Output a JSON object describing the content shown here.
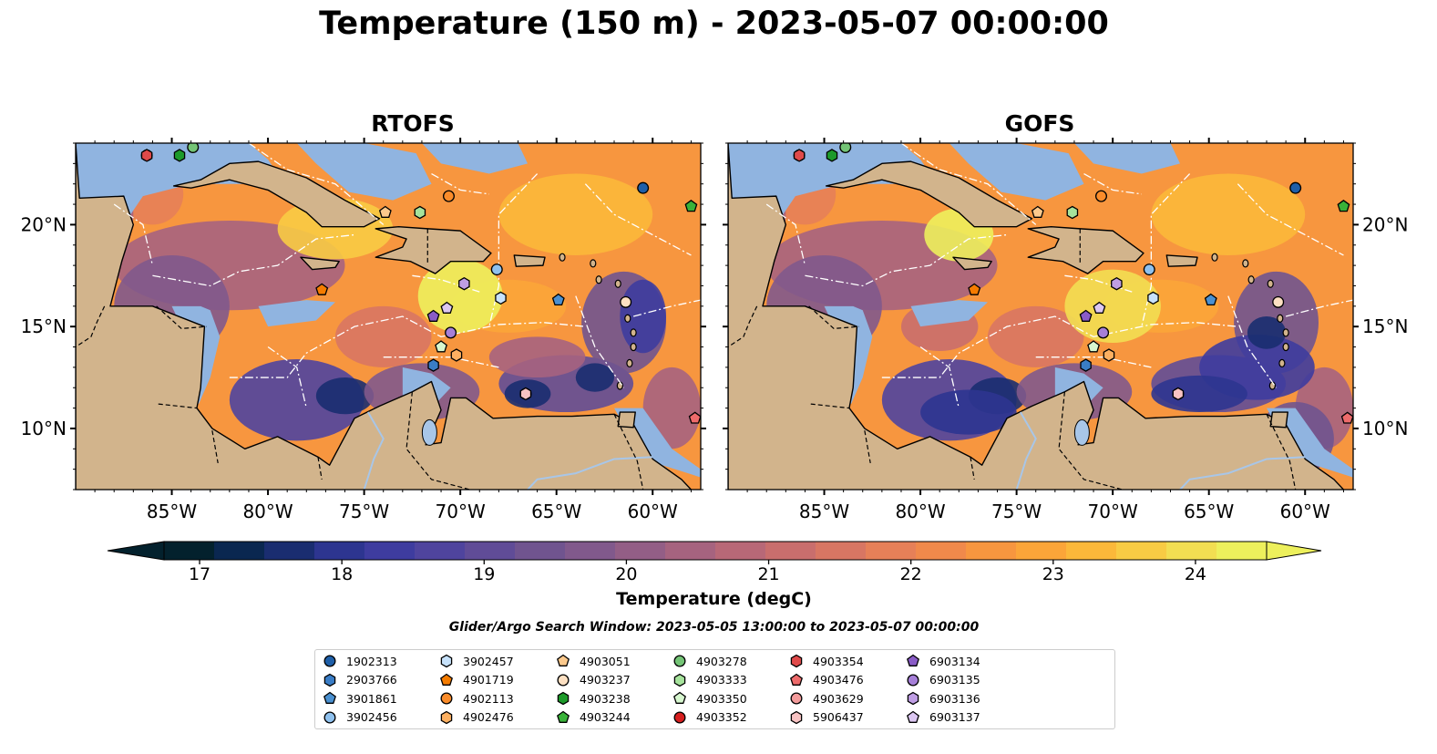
{
  "title": "Temperature (150 m) - 2023-05-07 00:00:00",
  "panels": [
    {
      "title": "RTOFS"
    },
    {
      "title": "GOFS"
    }
  ],
  "map": {
    "lon_ticks": [
      "85°W",
      "80°W",
      "75°W",
      "70°W",
      "65°W",
      "60°W"
    ],
    "lat_ticks": [
      "20°N",
      "15°N",
      "10°N"
    ],
    "colors": {
      "land": "#d2b48c",
      "shelf": "#90b4e0",
      "coast": "#000000",
      "boundary": "#ffffff"
    }
  },
  "colorbar": {
    "label": "Temperature (degC)",
    "ticks": [
      "17",
      "18",
      "19",
      "20",
      "21",
      "22",
      "23",
      "24"
    ],
    "min": 16.75,
    "max": 24.5,
    "extend": "both",
    "colors": [
      "#03212d",
      "#0a2750",
      "#1a2d70",
      "#2d3590",
      "#3e3c9f",
      "#4f449e",
      "#604c97",
      "#70548f",
      "#81598c",
      "#935e86",
      "#a6637f",
      "#b86877",
      "#c96e6d",
      "#d87663",
      "#e68058",
      "#f0894b",
      "#f7963f",
      "#fba539",
      "#fbb83a",
      "#f8cb44",
      "#f2de52",
      "#edf05c"
    ]
  },
  "search_window": "Glider/Argo Search Window: 2023-05-05 13:00:00 to 2023-05-07 00:00:00",
  "chart_data": [
    {
      "type": "heatmap",
      "title": "RTOFS",
      "variable": "Temperature (degC)",
      "depth": "150 m",
      "xlim": [
        -90,
        -57.5
      ],
      "ylim": [
        7,
        24
      ],
      "floats": [
        {
          "id": "1902313",
          "lon": -60.5,
          "lat": 21.8
        },
        {
          "id": "2903766",
          "lon": -71.4,
          "lat": 13.1
        },
        {
          "id": "3901861",
          "lon": -64.9,
          "lat": 16.3
        },
        {
          "id": "3902456",
          "lon": -68.1,
          "lat": 17.8
        },
        {
          "id": "3902457",
          "lon": -67.9,
          "lat": 16.4
        },
        {
          "id": "4901719",
          "lon": -77.2,
          "lat": 16.8
        },
        {
          "id": "4902113",
          "lon": -70.6,
          "lat": 21.4
        },
        {
          "id": "4902476",
          "lon": -70.2,
          "lat": 13.6
        },
        {
          "id": "4903051",
          "lon": -73.9,
          "lat": 20.6
        },
        {
          "id": "4903237",
          "lon": -61.4,
          "lat": 16.2
        },
        {
          "id": "4903238",
          "lon": -84.6,
          "lat": 23.4
        },
        {
          "id": "4903244",
          "lon": -58.0,
          "lat": 20.9
        },
        {
          "id": "4903278",
          "lon": -83.9,
          "lat": 23.8
        },
        {
          "id": "4903333",
          "lon": -72.1,
          "lat": 20.6
        },
        {
          "id": "4903350",
          "lon": -71.0,
          "lat": 14.0
        },
        {
          "id": "4903352",
          "lon": -86.3,
          "lat": 23.4
        },
        {
          "id": "4903354",
          "lon": -86.3,
          "lat": 23.4
        },
        {
          "id": "4903476",
          "lon": -57.8,
          "lat": 10.5
        },
        {
          "id": "4903629",
          "lon": -66.6,
          "lat": 11.7
        },
        {
          "id": "5906437",
          "lon": -66.6,
          "lat": 11.7
        },
        {
          "id": "6903134",
          "lon": -71.4,
          "lat": 15.5
        },
        {
          "id": "6903135",
          "lon": -70.5,
          "lat": 14.7
        },
        {
          "id": "6903136",
          "lon": -69.8,
          "lat": 17.1
        },
        {
          "id": "6903137",
          "lon": -70.7,
          "lat": 15.9
        }
      ]
    },
    {
      "type": "heatmap",
      "title": "GOFS",
      "variable": "Temperature (degC)",
      "depth": "150 m",
      "xlim": [
        -90,
        -57.5
      ],
      "ylim": [
        7,
        24
      ],
      "floats": "same as RTOFS"
    }
  ],
  "legend": [
    {
      "id": "1902313",
      "color": "#1f5fa8",
      "shape": "circle"
    },
    {
      "id": "2903766",
      "color": "#3a7dc6",
      "shape": "hexagon"
    },
    {
      "id": "3901861",
      "color": "#4a90d0",
      "shape": "pentagon"
    },
    {
      "id": "3902456",
      "color": "#8fc1ee",
      "shape": "circle"
    },
    {
      "id": "3902457",
      "color": "#c7e2fb",
      "shape": "hexagon"
    },
    {
      "id": "4901719",
      "color": "#f57c00",
      "shape": "pentagon"
    },
    {
      "id": "4902113",
      "color": "#fb8c2a",
      "shape": "circle"
    },
    {
      "id": "4902476",
      "color": "#fdb061",
      "shape": "hexagon"
    },
    {
      "id": "4903051",
      "color": "#fcc98c",
      "shape": "pentagon"
    },
    {
      "id": "4903237",
      "color": "#fde0c2",
      "shape": "circle"
    },
    {
      "id": "4903238",
      "color": "#1d9a2a",
      "shape": "hexagon"
    },
    {
      "id": "4903244",
      "color": "#39b239",
      "shape": "pentagon"
    },
    {
      "id": "4903278",
      "color": "#74c476",
      "shape": "circle"
    },
    {
      "id": "4903333",
      "color": "#a6e39c",
      "shape": "hexagon"
    },
    {
      "id": "4903350",
      "color": "#d7f7cf",
      "shape": "pentagon"
    },
    {
      "id": "4903352",
      "color": "#d61f1f",
      "shape": "circle"
    },
    {
      "id": "4903354",
      "color": "#e04a4a",
      "shape": "hexagon"
    },
    {
      "id": "4903476",
      "color": "#ee6b6b",
      "shape": "pentagon"
    },
    {
      "id": "4903629",
      "color": "#f39b9b",
      "shape": "circle"
    },
    {
      "id": "5906437",
      "color": "#f8c3c3",
      "shape": "hexagon"
    },
    {
      "id": "6903134",
      "color": "#8a5cc7",
      "shape": "pentagon"
    },
    {
      "id": "6903135",
      "color": "#a67fd8",
      "shape": "circle"
    },
    {
      "id": "6903136",
      "color": "#bf9ee4",
      "shape": "hexagon"
    },
    {
      "id": "6903137",
      "color": "#dcc7f2",
      "shape": "pentagon"
    }
  ]
}
